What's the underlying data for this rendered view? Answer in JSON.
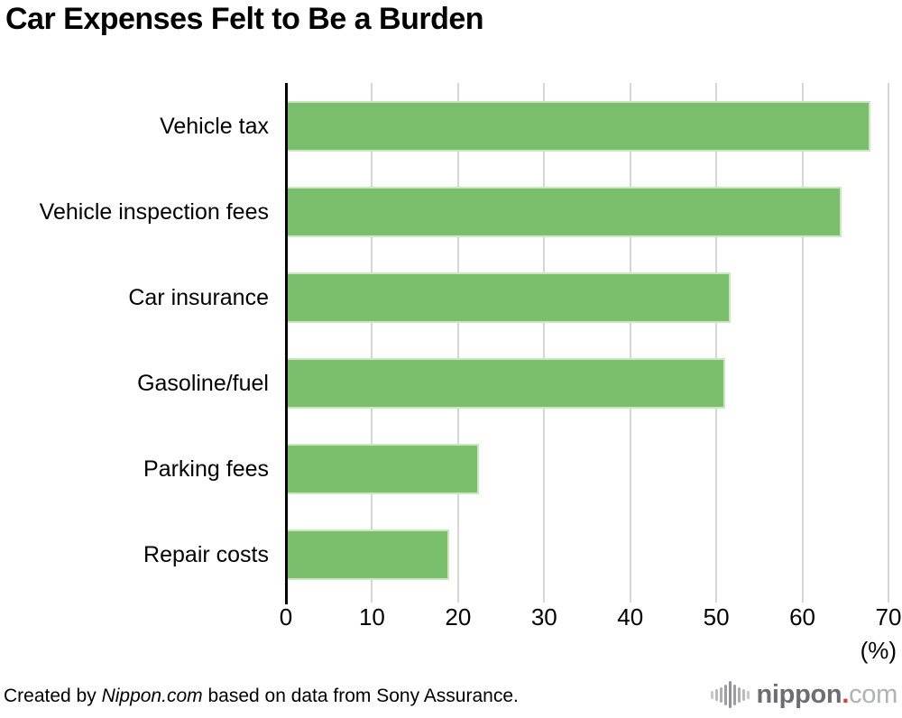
{
  "chart_data": {
    "type": "bar",
    "orientation": "horizontal",
    "title": "Car Expenses Felt to Be a Burden",
    "categories": [
      "Vehicle tax",
      "Vehicle inspection fees",
      "Car insurance",
      "Gasoline/fuel",
      "Parking fees",
      "Repair costs"
    ],
    "values": [
      67.9,
      64.6,
      51.7,
      51.0,
      22.4,
      19.0
    ],
    "xlabel": "(%)",
    "xlim": [
      0,
      70
    ],
    "xticks": [
      0,
      10,
      20,
      30,
      40,
      50,
      60,
      70
    ],
    "legend": "none",
    "grid": "vertical-only",
    "bar_color": "#7abf6b",
    "bar_border_color": "#cde6c2",
    "gridline_color": "#d6d6d6",
    "axis_color": "#000000"
  },
  "footer": {
    "credit_prefix": "Created by ",
    "credit_brand": "Nippon.com",
    "credit_suffix": " based on data from Sony Assurance."
  },
  "logo": {
    "icon": "waveform-icon",
    "word_bold": "nippon",
    "dot": ".",
    "word_light": "com",
    "color_bold": "#6d6e71",
    "color_light": "#b0b2b4",
    "dot_color": "#e73828",
    "wave_heights": [
      9,
      13,
      17,
      23,
      30,
      23,
      17,
      13,
      9
    ],
    "wave_colors": [
      "#c6c8ca",
      "#b9bbbd",
      "#acaeb0",
      "#9b9da0",
      "#8e9093",
      "#9b9da0",
      "#acaeb0",
      "#b9bbbd",
      "#c6c8ca"
    ]
  }
}
